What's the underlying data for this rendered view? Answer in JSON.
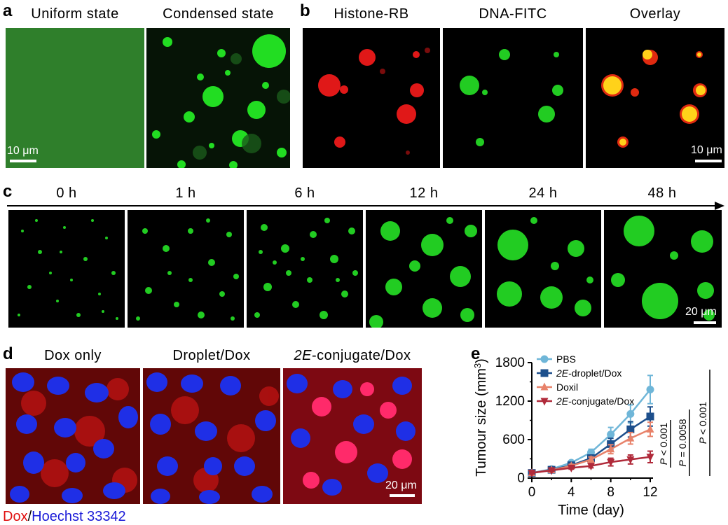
{
  "panel_labels": {
    "a": "a",
    "b": "b",
    "c": "c",
    "d": "d",
    "e": "e"
  },
  "a": {
    "titles": [
      "Uniform state",
      "Condensed state"
    ],
    "scalebar": "10 μm",
    "colors": {
      "uniform": "#2f7f2b",
      "droplet": "#22dd22",
      "background": "#061406"
    }
  },
  "b": {
    "titles": [
      "Histone-RB",
      "DNA-FITC",
      "Overlay"
    ],
    "scalebar": "10 μm",
    "colors": {
      "red": "#e01818",
      "green": "#22cc22",
      "overlay": "#ffd21a"
    }
  },
  "c": {
    "timepoints": [
      "0 h",
      "1 h",
      "6 h",
      "12 h",
      "24 h",
      "48 h"
    ],
    "scalebar": "20 μm"
  },
  "d": {
    "titles": [
      "Dox only",
      "Droplet/Dox",
      "2E-conjugate/Dox"
    ],
    "title_prefix_italic": "2E",
    "scalebar": "20 μm",
    "caption": {
      "dox": "Dox",
      "sep": "/",
      "hoechst": "Hoechst 33342"
    },
    "colors": {
      "nucleus": "#1f2fe6",
      "dox": "#e81616",
      "caption_dox": "#e01010",
      "caption_hoechst": "#1a1ad8"
    }
  },
  "chart_data": {
    "type": "line",
    "xlabel": "Time (day)",
    "ylabel": "Tumour size (mm3)",
    "ylabel_parts": {
      "main": "Tumour size (mm",
      "sup": "3",
      "end": ")"
    },
    "x": [
      0,
      2,
      4,
      6,
      8,
      10,
      12
    ],
    "xlim": [
      0,
      12
    ],
    "ylim": [
      0,
      1800
    ],
    "xticks": [
      "0",
      "4",
      "8",
      "12"
    ],
    "yticks": [
      "0",
      "600",
      "1200",
      "1800"
    ],
    "series": [
      {
        "name": "PBS",
        "color": "#6fb6d8",
        "marker": "circle",
        "values": [
          80,
          140,
          240,
          400,
          680,
          1000,
          1380
        ],
        "errors": [
          15,
          20,
          30,
          50,
          110,
          140,
          220
        ]
      },
      {
        "name": "2E-droplet/Dox",
        "italic_prefix": "2E",
        "rest": "-droplet/Dox",
        "color": "#1d4f8c",
        "marker": "square",
        "values": [
          80,
          130,
          200,
          310,
          530,
          760,
          960
        ],
        "errors": [
          15,
          20,
          30,
          50,
          90,
          120,
          150
        ]
      },
      {
        "name": "Doxil",
        "color": "#e8826a",
        "marker": "triangle",
        "values": [
          80,
          125,
          190,
          290,
          450,
          620,
          760
        ],
        "errors": [
          15,
          20,
          25,
          40,
          70,
          90,
          110
        ]
      },
      {
        "name": "2E-conjugate/Dox",
        "italic_prefix": "2E",
        "rest": "-conjugate/Dox",
        "color": "#b02a3a",
        "marker": "triangle-down",
        "values": [
          80,
          120,
          160,
          190,
          250,
          290,
          330
        ],
        "errors": [
          15,
          15,
          20,
          30,
          60,
          70,
          90
        ]
      }
    ],
    "pvalues": [
      "P < 0.001",
      "P = 0.0058",
      "P < 0.001"
    ]
  }
}
